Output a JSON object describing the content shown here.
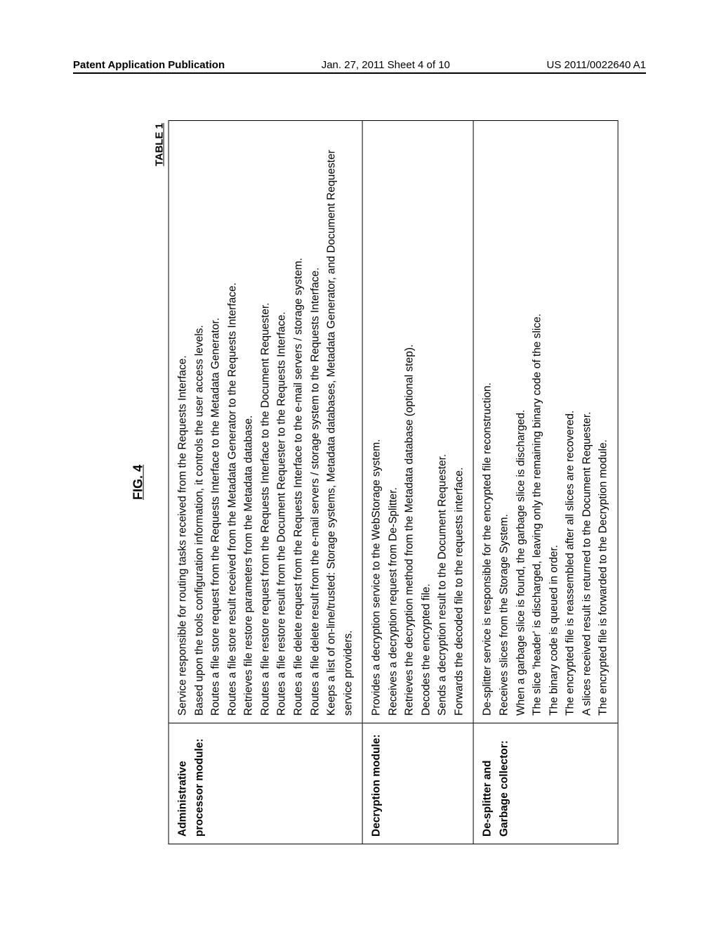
{
  "header": {
    "left": "Patent Application Publication",
    "center": "Jan. 27, 2011  Sheet 4 of 10",
    "right": "US 2011/0022640 A1"
  },
  "figure": {
    "title": "FIG. 4",
    "table_label": "TABLE 1"
  },
  "rows": [
    {
      "name": "Administrative processor module:",
      "lines": [
        "Service responsible for routing tasks received from the Requests Interface.",
        "Based upon the tools configuration information, it controls the user access levels.",
        "Routes a file store request from the Requests Interface to the Metadata Generator.",
        "Routes a file store result received from the Metadata Generator to the Requests Interface.",
        "Retrieves file restore parameters from the Metadata database.",
        "Routes a file restore request from the Requests Interface to the Document Requester.",
        "Routes a file restore result from the Document Requester to the Requests Interface.",
        "Routes a file delete request from the Requests Interface to the e-mail servers / storage system.",
        "Routes a file delete result from the e-mail servers / storage system to the Requests Interface.",
        "Keeps a list of on-line/trusted: Storage systems, Metadata databases, Metadata Generator, and Document Requester service providers."
      ]
    },
    {
      "name": "Decryption module:",
      "lines": [
        "Provides a decryption service to the WebStorage system.",
        "Receives a decryption request from De-Splitter.",
        "Retrieves the decryption method from the Metadata database (optional step).",
        "Decodes the encrypted file.",
        "Sends a decryption result to the Document Requester.",
        "Forwards the decoded file to the requests interface."
      ]
    },
    {
      "name": "De-splitter and Garbage collector:",
      "lines": [
        "De-splitter service is responsible for the encrypted file reconstruction.",
        "Receives slices from the Storage System.",
        "When a garbage slice is found, the garbage slice is discharged.",
        "The slice 'header' is discharged, leaving only the remaining binary code of the slice.",
        "The binary code is queued in order.",
        "The encrypted file is reassembled after all slices are recovered.",
        "A slices received result is returned to the Document Requester.",
        "The encrypted file is forwarded to the Decryption module."
      ]
    }
  ]
}
